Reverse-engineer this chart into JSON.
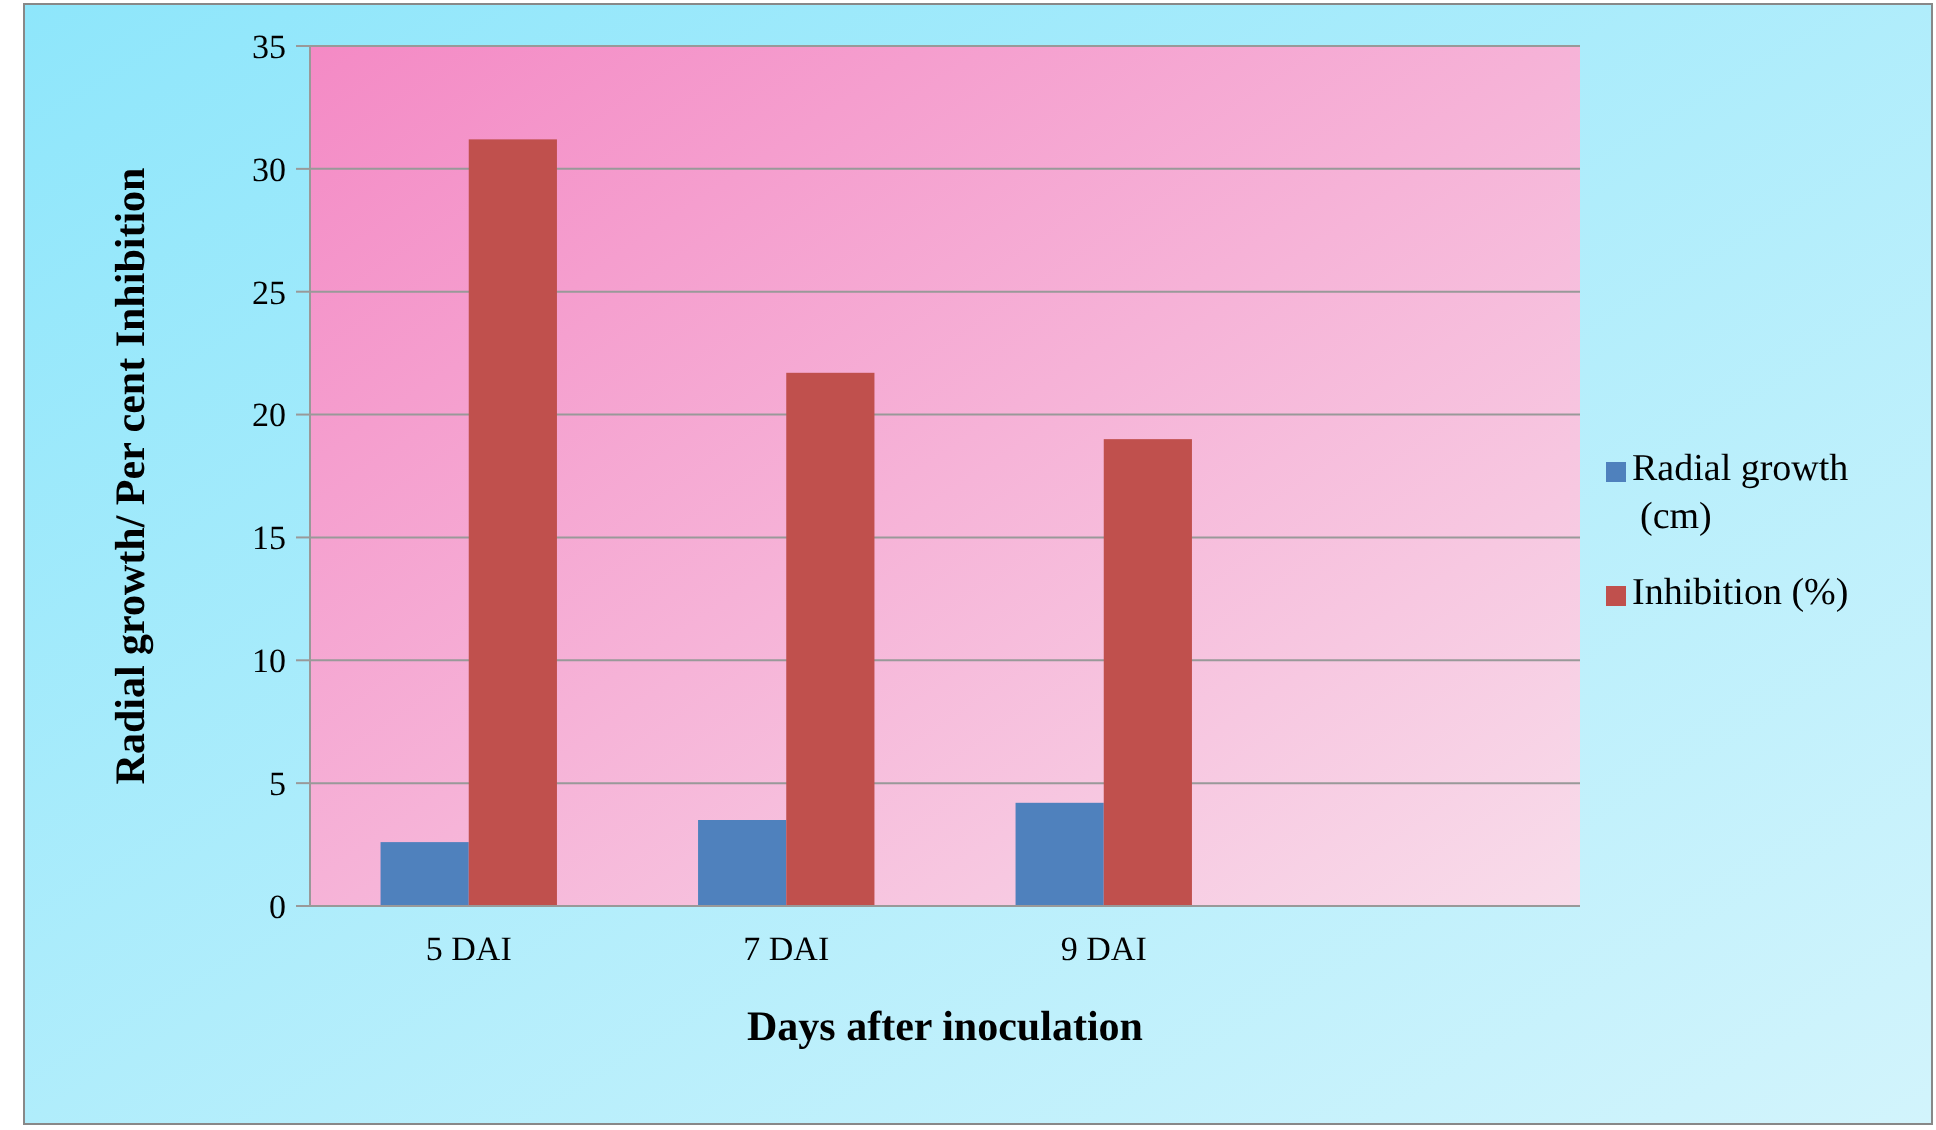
{
  "chart_data": {
    "type": "bar",
    "xlabel": "Days after inoculation",
    "ylabel": "Radial growth/ Per cent Inhibition",
    "categories": [
      "5 DAI",
      "7 DAI",
      "9 DAI",
      null
    ],
    "series": [
      {
        "name": "Radial growth (cm)",
        "color": "#4f81bd",
        "values": [
          2.6,
          3.5,
          4.2,
          null
        ]
      },
      {
        "name": "Inhibition (%)",
        "color": "#c0504d",
        "values": [
          31.2,
          21.7,
          19.0,
          null
        ]
      }
    ],
    "ylim": [
      0,
      35
    ],
    "yticks": [
      0,
      5,
      10,
      15,
      20,
      25,
      30,
      35
    ],
    "grid": "y",
    "legend": "right"
  }
}
